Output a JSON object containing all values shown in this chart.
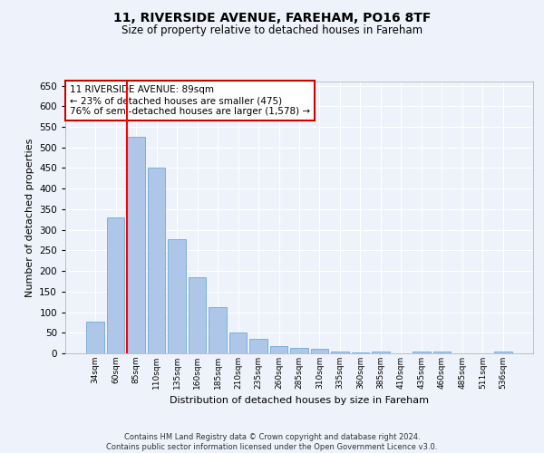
{
  "title1": "11, RIVERSIDE AVENUE, FAREHAM, PO16 8TF",
  "title2": "Size of property relative to detached houses in Fareham",
  "xlabel": "Distribution of detached houses by size in Fareham",
  "ylabel": "Number of detached properties",
  "categories": [
    "34sqm",
    "60sqm",
    "85sqm",
    "110sqm",
    "135sqm",
    "160sqm",
    "185sqm",
    "210sqm",
    "235sqm",
    "260sqm",
    "285sqm",
    "310sqm",
    "335sqm",
    "360sqm",
    "385sqm",
    "410sqm",
    "435sqm",
    "460sqm",
    "485sqm",
    "511sqm",
    "536sqm"
  ],
  "values": [
    76,
    330,
    525,
    450,
    278,
    184,
    113,
    50,
    36,
    18,
    14,
    10,
    5,
    3,
    5,
    0,
    4,
    4,
    0,
    0,
    5
  ],
  "bar_color": "#aec6e8",
  "bar_edge_color": "#5a9fd4",
  "property_line_idx": 2,
  "annotation_text": "11 RIVERSIDE AVENUE: 89sqm\n← 23% of detached houses are smaller (475)\n76% of semi-detached houses are larger (1,578) →",
  "annotation_box_color": "#ffffff",
  "annotation_box_edge": "#cc0000",
  "footer_line1": "Contains HM Land Registry data © Crown copyright and database right 2024.",
  "footer_line2": "Contains public sector information licensed under the Open Government Licence v3.0.",
  "bg_color": "#eef2fa",
  "grid_color": "#ffffff",
  "ylim": [
    0,
    660
  ],
  "yticks": [
    0,
    50,
    100,
    150,
    200,
    250,
    300,
    350,
    400,
    450,
    500,
    550,
    600,
    650
  ]
}
